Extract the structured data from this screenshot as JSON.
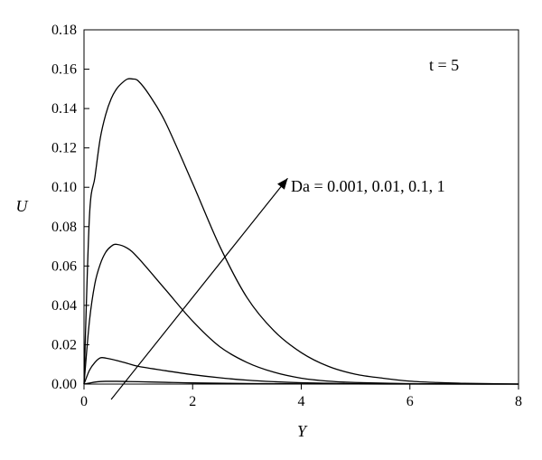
{
  "chart_data": {
    "type": "line",
    "title": "",
    "xlabel": "Y",
    "ylabel": "U",
    "xlim": [
      0,
      8
    ],
    "ylim": [
      0,
      0.18
    ],
    "xticks": [
      "0",
      "2",
      "4",
      "6",
      "8"
    ],
    "yticks": [
      "0.00",
      "0.02",
      "0.04",
      "0.06",
      "0.08",
      "0.10",
      "0.12",
      "0.14",
      "0.16",
      "0.18"
    ],
    "grid": false,
    "legend": "none",
    "annotations": {
      "time_label": "t = 5",
      "parameter_label": "Da = 0.001, 0.01, 0.1, 1"
    },
    "series": [
      {
        "x": [
          0,
          0.1,
          0.2,
          0.3,
          0.4,
          0.6,
          0.8,
          1.0,
          1.5,
          2.0,
          3.0,
          4.0,
          5.0,
          6.0,
          7.0,
          8.0
        ],
        "y": [
          0,
          0.0005,
          0.001,
          0.0013,
          0.0014,
          0.0014,
          0.0013,
          0.0012,
          0.0009,
          0.0006,
          0.0003,
          0.0001,
          5e-05,
          2e-05,
          1e-05,
          0
        ]
      },
      {
        "x": [
          0,
          0.1,
          0.2,
          0.3,
          0.4,
          0.6,
          0.8,
          1.0,
          1.5,
          2.0,
          2.5,
          3.0,
          3.5,
          4.0,
          5.0,
          6.0,
          7.0,
          8.0
        ],
        "y": [
          0,
          0.007,
          0.011,
          0.0133,
          0.0132,
          0.012,
          0.0105,
          0.009,
          0.0068,
          0.0048,
          0.0032,
          0.002,
          0.0012,
          0.0007,
          0.0002,
          5e-05,
          1e-05,
          0
        ]
      },
      {
        "x": [
          0,
          0.1,
          0.2,
          0.3,
          0.4,
          0.5,
          0.6,
          0.8,
          1.0,
          1.5,
          2.0,
          2.5,
          3.0,
          3.5,
          4.0,
          4.5,
          5.0,
          6.0,
          7.0,
          8.0
        ],
        "y": [
          0,
          0.032,
          0.051,
          0.061,
          0.067,
          0.07,
          0.071,
          0.069,
          0.064,
          0.048,
          0.032,
          0.019,
          0.011,
          0.006,
          0.003,
          0.0015,
          0.0008,
          0.0002,
          5e-05,
          0
        ]
      },
      {
        "x": [
          0,
          0.1,
          0.2,
          0.3,
          0.4,
          0.5,
          0.6,
          0.7,
          0.8,
          0.9,
          1.0,
          1.2,
          1.5,
          2.0,
          2.5,
          3.0,
          3.5,
          4.0,
          4.5,
          5.0,
          5.5,
          6.0,
          6.5,
          7.0,
          8.0
        ],
        "y": [
          0,
          0.085,
          0.105,
          0.125,
          0.137,
          0.145,
          0.15,
          0.153,
          0.155,
          0.155,
          0.154,
          0.147,
          0.133,
          0.102,
          0.07,
          0.044,
          0.027,
          0.016,
          0.009,
          0.005,
          0.003,
          0.0015,
          0.0008,
          0.0004,
          0
        ]
      }
    ],
    "arrow": {
      "from": [
        0.5,
        0.0
      ],
      "to": [
        3.75,
        0.1
      ]
    },
    "colors": {
      "line": "#000000",
      "background": "#ffffff"
    }
  }
}
